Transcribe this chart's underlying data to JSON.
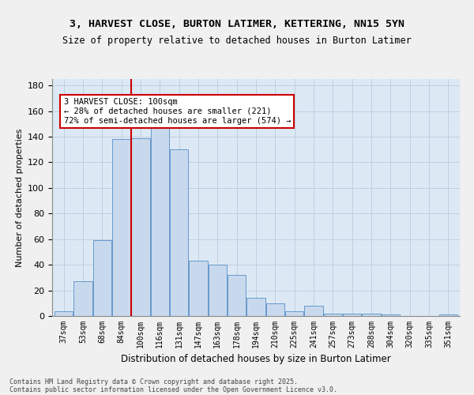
{
  "title1": "3, HARVEST CLOSE, BURTON LATIMER, KETTERING, NN15 5YN",
  "title2": "Size of property relative to detached houses in Burton Latimer",
  "xlabel": "Distribution of detached houses by size in Burton Latimer",
  "ylabel": "Number of detached properties",
  "categories": [
    "37sqm",
    "53sqm",
    "68sqm",
    "84sqm",
    "100sqm",
    "116sqm",
    "131sqm",
    "147sqm",
    "163sqm",
    "178sqm",
    "194sqm",
    "210sqm",
    "225sqm",
    "241sqm",
    "257sqm",
    "273sqm",
    "288sqm",
    "304sqm",
    "320sqm",
    "335sqm",
    "351sqm"
  ],
  "hist_values": [
    4,
    27,
    59,
    138,
    139,
    147,
    130,
    43,
    40,
    32,
    14,
    10,
    4,
    8,
    2,
    2,
    2,
    1,
    0,
    0,
    1
  ],
  "bar_color": "#c9d9ed",
  "bar_edge_color": "#6699cc",
  "red_line_color": "#cc0000",
  "annotation_box_color": "#ffffff",
  "annotation_box_edge": "#cc0000",
  "annotation_title": "3 HARVEST CLOSE: 100sqm",
  "annotation_line1": "← 28% of detached houses are smaller (221)",
  "annotation_line2": "72% of semi-detached houses are larger (574) →",
  "grid_color": "#c0cfe0",
  "bg_color": "#dce9f5",
  "footer1": "Contains HM Land Registry data © Crown copyright and database right 2025.",
  "footer2": "Contains public sector information licensed under the Open Government Licence v3.0.",
  "ylim": [
    0,
    185
  ],
  "yticks": [
    0,
    20,
    40,
    60,
    80,
    100,
    120,
    140,
    160,
    180
  ],
  "red_line_x": 4,
  "n_bars": 21
}
